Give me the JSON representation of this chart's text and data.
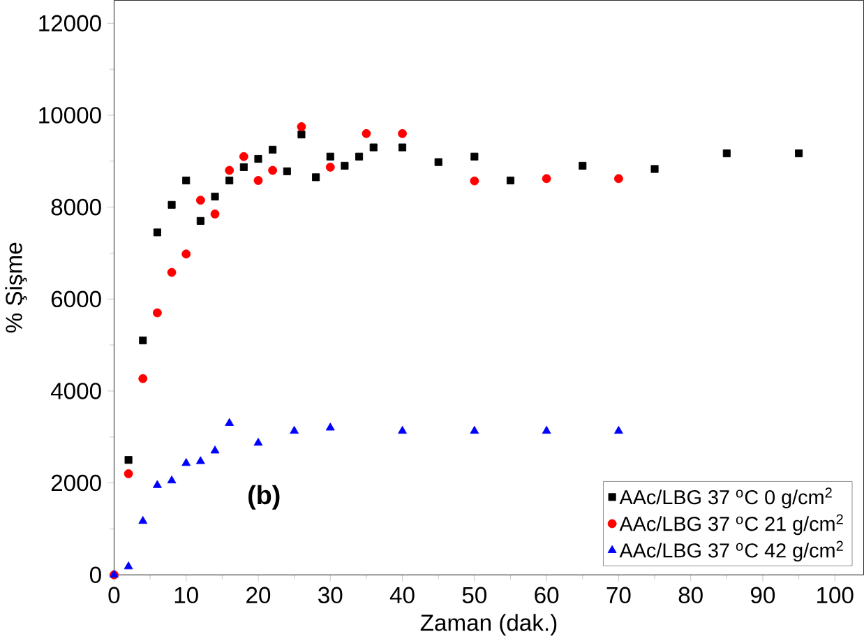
{
  "chart_data": {
    "type": "scatter",
    "xlabel": "Zaman (dak.)",
    "ylabel": "% Şişme",
    "xlim": [
      0,
      104
    ],
    "ylim": [
      0,
      12500
    ],
    "xticks": [
      0,
      10,
      20,
      30,
      40,
      50,
      60,
      70,
      80,
      90,
      100
    ],
    "yticks": [
      0,
      2000,
      4000,
      6000,
      8000,
      10000,
      12000
    ],
    "legend": "bottom right",
    "grid": false,
    "annotations": [
      "**(b)**"
    ],
    "series": [
      {
        "name": "AAc/LBG 37 $^{o}$C   0 g/cm$^{2}$",
        "color": "#000000",
        "marker": "square",
        "x": [
          2,
          4,
          6,
          8,
          10,
          12,
          14,
          16,
          18,
          20,
          22,
          24,
          26,
          28,
          30,
          32,
          34,
          36,
          40,
          45,
          50,
          55,
          65,
          75,
          85,
          95
        ],
        "values": [
          2500,
          5100,
          7450,
          8050,
          8580,
          7700,
          8230,
          8580,
          8870,
          9050,
          9250,
          8780,
          9580,
          8650,
          9100,
          8900,
          9100,
          9300,
          9300,
          8980,
          9100,
          8580,
          8900,
          8830,
          9170,
          9170
        ]
      },
      {
        "name": "AAc/LBG 37 $^{o}$C 21 g/cm$^{2}$",
        "color": "#ff0000",
        "marker": "circle",
        "x": [
          0,
          2,
          4,
          6,
          8,
          10,
          12,
          14,
          16,
          18,
          20,
          22,
          26,
          30,
          35,
          40,
          50,
          60,
          70
        ],
        "values": [
          0,
          2200,
          4270,
          5700,
          6580,
          6980,
          8150,
          7850,
          8800,
          9100,
          8580,
          8800,
          9750,
          8870,
          9600,
          9600,
          8570,
          8620,
          8620
        ]
      },
      {
        "name": "AAc/LBG 37 $^{o}$C 42 g/cm$^{2}$",
        "color": "#0000ff",
        "marker": "triangle",
        "x": [
          0,
          2,
          4,
          6,
          8,
          10,
          12,
          14,
          16,
          20,
          25,
          30,
          40,
          50,
          60,
          70
        ],
        "values": [
          0,
          180,
          1170,
          1950,
          2050,
          2430,
          2470,
          2700,
          3300,
          2870,
          3130,
          3200,
          3130,
          3130,
          3130,
          3130
        ]
      }
    ]
  }
}
